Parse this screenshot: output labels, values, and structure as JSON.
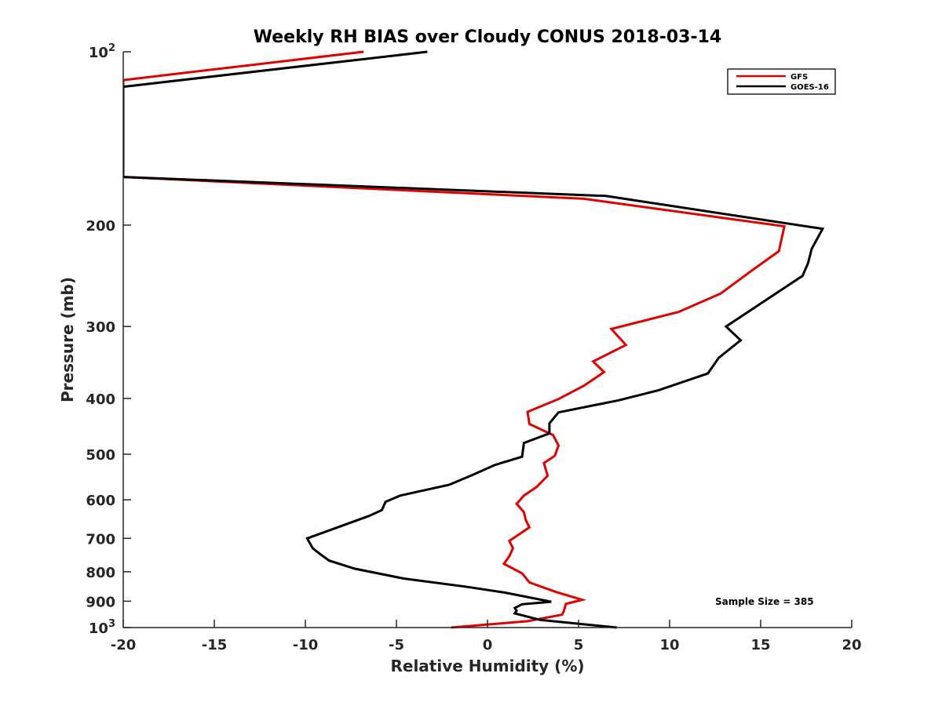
{
  "chart_data": {
    "type": "line",
    "title": "Weekly RH BIAS over Cloudy CONUS 2018-03-14",
    "xlabel": "Relative Humidity (%)",
    "ylabel": "Pressure (mb)",
    "xlim": [
      -20,
      20
    ],
    "ylim": [
      100,
      1000
    ],
    "y_scale": "log",
    "y_reversed": true,
    "grid": false,
    "legend_position": "top-right",
    "x_ticks": [
      -20,
      -15,
      -10,
      -5,
      0,
      5,
      10,
      15,
      20
    ],
    "x_tick_labels": [
      "-20",
      "-15",
      "-10",
      "-5",
      "0",
      "5",
      "10",
      "15",
      "20"
    ],
    "y_ticks": [
      {
        "value": 100,
        "base": "10",
        "exp": "2"
      },
      {
        "value": 200,
        "base": "200",
        "exp": ""
      },
      {
        "value": 300,
        "base": "300",
        "exp": ""
      },
      {
        "value": 400,
        "base": "400",
        "exp": ""
      },
      {
        "value": 500,
        "base": "500",
        "exp": ""
      },
      {
        "value": 600,
        "base": "600",
        "exp": ""
      },
      {
        "value": 700,
        "base": "700",
        "exp": ""
      },
      {
        "value": 800,
        "base": "800",
        "exp": ""
      },
      {
        "value": 900,
        "base": "900",
        "exp": ""
      },
      {
        "value": 1000,
        "base": "10",
        "exp": "3"
      }
    ],
    "annotation": "Sample Size = 385",
    "series": [
      {
        "name": "GFS",
        "color": "#e00000",
        "points": [
          [
            -6.8,
            100
          ],
          [
            -20,
            112
          ],
          [
            -20,
            165
          ],
          [
            5.3,
            180
          ],
          [
            16.3,
            201
          ],
          [
            16.0,
            222
          ],
          [
            14.5,
            240
          ],
          [
            12.8,
            263
          ],
          [
            10.5,
            283
          ],
          [
            6.8,
            303
          ],
          [
            7.6,
            323
          ],
          [
            5.8,
            345
          ],
          [
            6.4,
            360
          ],
          [
            5.3,
            380
          ],
          [
            3.9,
            401
          ],
          [
            2.2,
            422
          ],
          [
            2.3,
            443
          ],
          [
            3.4,
            460
          ],
          [
            3.6,
            463
          ],
          [
            3.9,
            483
          ],
          [
            3.7,
            503
          ],
          [
            3.1,
            518
          ],
          [
            3.3,
            545
          ],
          [
            2.7,
            570
          ],
          [
            2.0,
            590
          ],
          [
            1.6,
            610
          ],
          [
            2.0,
            630
          ],
          [
            2.1,
            650
          ],
          [
            2.3,
            670
          ],
          [
            1.7,
            690
          ],
          [
            1.2,
            707
          ],
          [
            1.4,
            728
          ],
          [
            1.2,
            752
          ],
          [
            0.9,
            775
          ],
          [
            1.9,
            805
          ],
          [
            2.3,
            835
          ],
          [
            3.8,
            868
          ],
          [
            5.2,
            895
          ],
          [
            4.3,
            910
          ],
          [
            4.2,
            935
          ],
          [
            4.1,
            950
          ],
          [
            2.2,
            975
          ],
          [
            -2.0,
            1000
          ]
        ]
      },
      {
        "name": "GOES-16",
        "color": "#000000",
        "points": [
          [
            -3.3,
            100
          ],
          [
            -20,
            115
          ],
          [
            -20,
            165
          ],
          [
            6.5,
            178
          ],
          [
            18.4,
            203
          ],
          [
            17.8,
            220
          ],
          [
            17.6,
            233
          ],
          [
            17.3,
            245
          ],
          [
            13.1,
            300
          ],
          [
            13.9,
            317
          ],
          [
            12.7,
            340
          ],
          [
            12.1,
            362
          ],
          [
            9.4,
            387
          ],
          [
            7.2,
            403
          ],
          [
            3.9,
            423
          ],
          [
            3.4,
            442
          ],
          [
            3.4,
            460
          ],
          [
            2.0,
            478
          ],
          [
            1.9,
            505
          ],
          [
            0.4,
            522
          ],
          [
            -0.8,
            543
          ],
          [
            -2.1,
            565
          ],
          [
            -4.8,
            590
          ],
          [
            -5.6,
            605
          ],
          [
            -5.8,
            625
          ],
          [
            -6.5,
            640
          ],
          [
            -9.9,
            700
          ],
          [
            -9.6,
            728
          ],
          [
            -9.2,
            745
          ],
          [
            -8.7,
            765
          ],
          [
            -7.3,
            790
          ],
          [
            -4.6,
            822
          ],
          [
            -1.1,
            850
          ],
          [
            1.0,
            870
          ],
          [
            3.5,
            902
          ],
          [
            1.9,
            911
          ],
          [
            1.5,
            925
          ],
          [
            1.6,
            935
          ],
          [
            1.5,
            945
          ],
          [
            2.9,
            970
          ],
          [
            7.1,
            1000
          ]
        ]
      }
    ]
  }
}
